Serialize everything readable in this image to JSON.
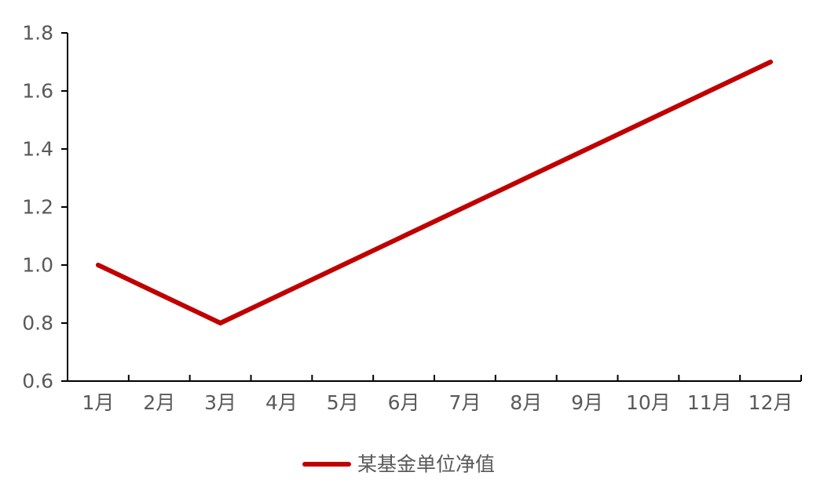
{
  "chart_data": {
    "type": "line",
    "title": "",
    "xlabel": "",
    "ylabel": "",
    "categories": [
      "1月",
      "2月",
      "3月",
      "4月",
      "5月",
      "6月",
      "7月",
      "8月",
      "9月",
      "10月",
      "11月",
      "12月"
    ],
    "series": [
      {
        "name": "某基金单位净值",
        "color": "#C00000",
        "values": [
          1.0,
          0.9,
          0.8,
          0.9,
          1.0,
          1.1,
          1.2,
          1.3,
          1.4,
          1.5,
          1.6,
          1.7
        ]
      }
    ],
    "ylim": [
      0.6,
      1.8
    ],
    "yticks": [
      "0.6",
      "0.8",
      "1.0",
      "1.2",
      "1.4",
      "1.6",
      "1.8"
    ],
    "grid": false,
    "legend_position": "bottom"
  }
}
